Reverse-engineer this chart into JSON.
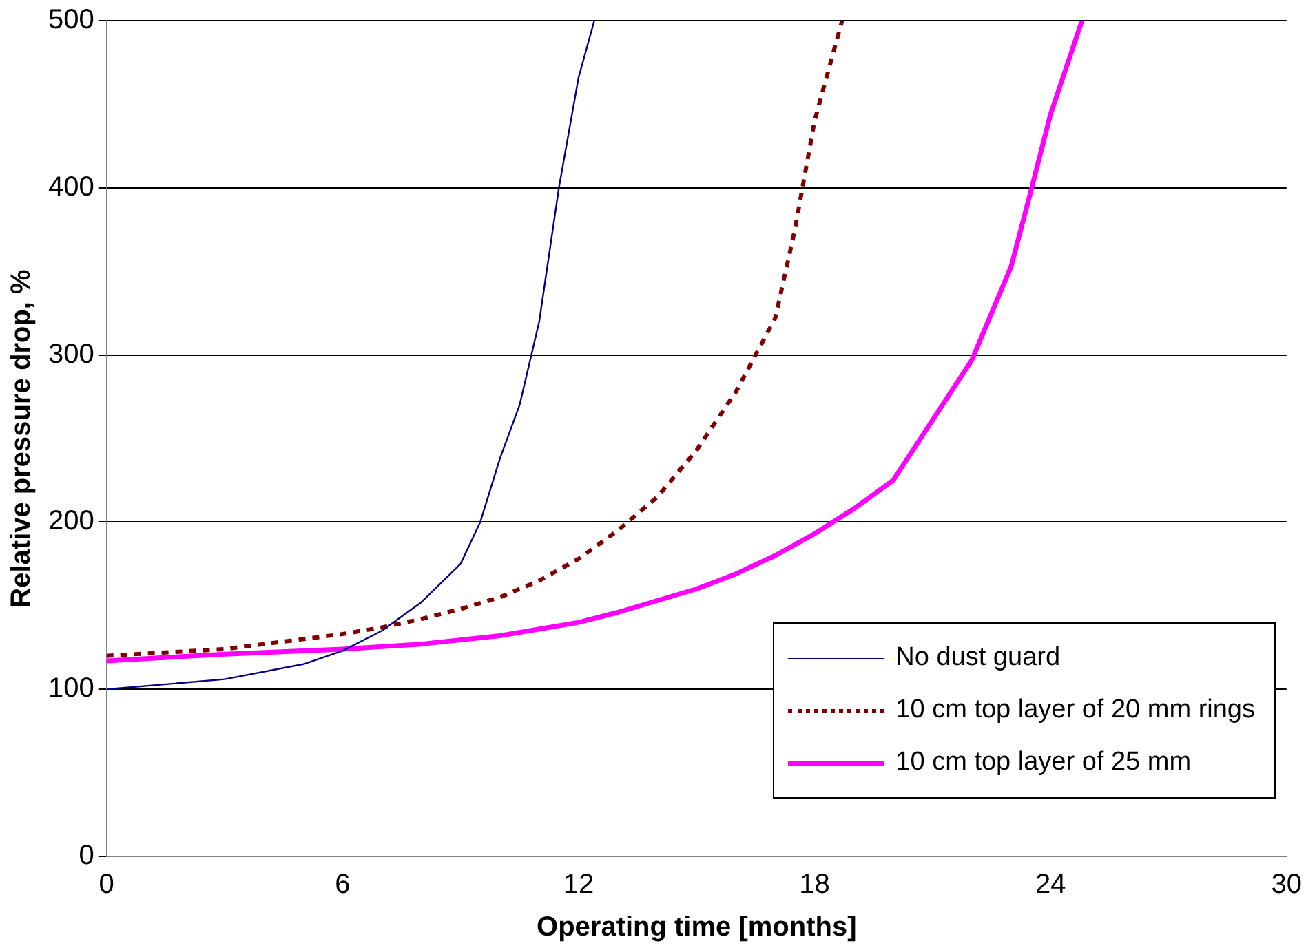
{
  "chart_data": {
    "type": "line",
    "xlabel": "Operating time [months]",
    "ylabel": "Relative pressure drop, %",
    "xlim": [
      0,
      30
    ],
    "xticks": [
      0,
      6,
      12,
      18,
      24,
      30
    ],
    "ylim": [
      0,
      500
    ],
    "yticks": [
      0,
      100,
      200,
      300,
      400,
      500
    ],
    "grid": "y",
    "legend": "bottom right",
    "marker": "none",
    "series": [
      {
        "name": "No dust guard",
        "color": "#000080",
        "line_style": "solid",
        "x": [
          0,
          3,
          5,
          6,
          7,
          8,
          9,
          9.5,
          10,
          10.5,
          11,
          11.5,
          12,
          12.4
        ],
        "values": [
          100,
          106,
          115,
          123,
          135,
          152,
          175,
          200,
          238,
          270,
          320,
          400,
          466,
          500
        ]
      },
      {
        "name": "10 cm top layer of 20 mm rings",
        "color": "#800000",
        "line_style": "dotted",
        "x": [
          0,
          3,
          4,
          5,
          6,
          7,
          8,
          9,
          10,
          11,
          12,
          13,
          14,
          15,
          16,
          17,
          17.5,
          18,
          18.7
        ],
        "values": [
          120,
          124,
          127,
          130,
          133,
          137,
          142,
          148,
          155,
          165,
          178,
          195,
          215,
          243,
          278,
          322,
          375,
          440,
          500
        ]
      },
      {
        "name": "10 cm top layer of 25 mm",
        "color": "#ff00ff",
        "line_style": "solid",
        "x": [
          0,
          3,
          6,
          8,
          10,
          12,
          13,
          14,
          15,
          16,
          17,
          18,
          19,
          20,
          21,
          22,
          23,
          23.5,
          24,
          24.8
        ],
        "values": [
          117,
          121,
          124,
          127,
          132,
          140,
          146,
          153,
          160,
          169,
          180,
          193,
          208,
          225,
          261,
          297,
          353,
          398,
          444,
          500
        ]
      }
    ]
  }
}
